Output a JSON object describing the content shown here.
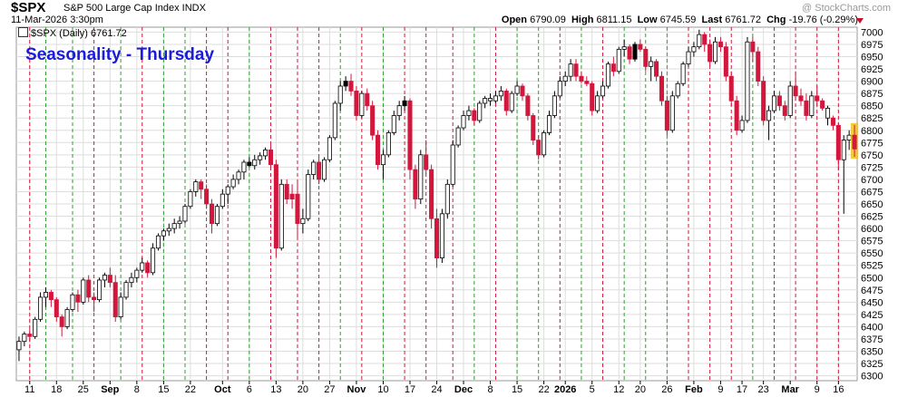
{
  "header": {
    "symbol": "$SPX",
    "name": "S&P 500 Large Cap Index INDX",
    "date": "11-Mar-2026 3:30pm",
    "watermark": "@ StockCharts.com",
    "open_label": "Open",
    "open": "6790.09",
    "high_label": "High",
    "high": "6811.15",
    "low_label": "Low",
    "low": "6745.59",
    "last_label": "Last",
    "last": "6761.72",
    "chg_label": "Chg",
    "chg": "-19.76 (-0.29%)"
  },
  "legend": {
    "text": "$SPX (Daily) 6761.72"
  },
  "overlay": {
    "text": "Seasonality - Thursday"
  },
  "colors": {
    "up": "#ffffff",
    "down": "#d2163c",
    "neutral": "#000000",
    "current": "#f0c419",
    "green_line": "#2e9e2e",
    "red_line": "#d2163c",
    "grid": "#dddddd"
  },
  "chart_data": {
    "type": "candlestick",
    "ylim": [
      6290,
      7010
    ],
    "yticks": [
      6300,
      6325,
      6350,
      6375,
      6400,
      6425,
      6450,
      6475,
      6500,
      6525,
      6550,
      6575,
      6600,
      6625,
      6650,
      6675,
      6700,
      6725,
      6750,
      6775,
      6800,
      6825,
      6850,
      6875,
      6900,
      6925,
      6950,
      6975,
      7000
    ],
    "xticks": [
      "11",
      "18",
      "25",
      "Sep",
      "8",
      "15",
      "22",
      "Oct",
      "6",
      "13",
      "20",
      "27",
      "Nov",
      "10",
      "17",
      "24",
      "Dec",
      "8",
      "15",
      "22",
      "2026",
      "5",
      "12",
      "20",
      "26",
      "Feb",
      "9",
      "17",
      "23",
      "Mar",
      "9",
      "16"
    ],
    "tick_positions": [
      2,
      7,
      12,
      17,
      22,
      27,
      32,
      38,
      43,
      48,
      53,
      58,
      63,
      68,
      73,
      78,
      83,
      88,
      93,
      98,
      102,
      107,
      112,
      116,
      121,
      126,
      131,
      135,
      139,
      144,
      149,
      153
    ],
    "candles": [
      [
        6353,
        6380,
        6330,
        6370,
        "u"
      ],
      [
        6370,
        6390,
        6360,
        6385,
        "u"
      ],
      [
        6385,
        6395,
        6370,
        6380,
        "d"
      ],
      [
        6380,
        6420,
        6375,
        6415,
        "u"
      ],
      [
        6415,
        6470,
        6410,
        6460,
        "u"
      ],
      [
        6460,
        6480,
        6440,
        6470,
        "u"
      ],
      [
        6470,
        6475,
        6440,
        6455,
        "d"
      ],
      [
        6455,
        6460,
        6410,
        6420,
        "d"
      ],
      [
        6420,
        6425,
        6380,
        6400,
        "d"
      ],
      [
        6400,
        6440,
        6395,
        6435,
        "u"
      ],
      [
        6435,
        6470,
        6430,
        6465,
        "u"
      ],
      [
        6465,
        6475,
        6430,
        6450,
        "d"
      ],
      [
        6450,
        6500,
        6445,
        6495,
        "u"
      ],
      [
        6495,
        6505,
        6450,
        6460,
        "d"
      ],
      [
        6460,
        6470,
        6430,
        6455,
        "d"
      ],
      [
        6455,
        6500,
        6450,
        6495,
        "u"
      ],
      [
        6495,
        6510,
        6480,
        6505,
        "u"
      ],
      [
        6505,
        6520,
        6480,
        6490,
        "d"
      ],
      [
        6490,
        6505,
        6410,
        6420,
        "d"
      ],
      [
        6420,
        6470,
        6415,
        6460,
        "u"
      ],
      [
        6460,
        6495,
        6455,
        6490,
        "u"
      ],
      [
        6490,
        6510,
        6480,
        6500,
        "u"
      ],
      [
        6500,
        6520,
        6490,
        6515,
        "u"
      ],
      [
        6515,
        6540,
        6510,
        6530,
        "u"
      ],
      [
        6530,
        6535,
        6500,
        6510,
        "d"
      ],
      [
        6510,
        6570,
        6505,
        6560,
        "u"
      ],
      [
        6560,
        6590,
        6555,
        6585,
        "u"
      ],
      [
        6585,
        6600,
        6575,
        6595,
        "u"
      ],
      [
        6595,
        6610,
        6585,
        6600,
        "u"
      ],
      [
        6600,
        6620,
        6590,
        6610,
        "u"
      ],
      [
        6610,
        6625,
        6600,
        6615,
        "u"
      ],
      [
        6615,
        6650,
        6610,
        6645,
        "u"
      ],
      [
        6645,
        6680,
        6640,
        6675,
        "u"
      ],
      [
        6675,
        6700,
        6665,
        6695,
        "u"
      ],
      [
        6695,
        6700,
        6660,
        6680,
        "d"
      ],
      [
        6680,
        6690,
        6640,
        6650,
        "d"
      ],
      [
        6650,
        6660,
        6590,
        6610,
        "d"
      ],
      [
        6610,
        6650,
        6605,
        6645,
        "u"
      ],
      [
        6645,
        6680,
        6640,
        6670,
        "u"
      ],
      [
        6670,
        6690,
        6650,
        6685,
        "u"
      ],
      [
        6685,
        6710,
        6680,
        6700,
        "u"
      ],
      [
        6700,
        6720,
        6690,
        6715,
        "u"
      ],
      [
        6715,
        6740,
        6700,
        6735,
        "u"
      ],
      [
        6735,
        6745,
        6725,
        6728,
        "n"
      ],
      [
        6728,
        6750,
        6720,
        6740,
        "u"
      ],
      [
        6740,
        6755,
        6730,
        6748,
        "u"
      ],
      [
        6748,
        6765,
        6740,
        6760,
        "u"
      ],
      [
        6760,
        6770,
        6720,
        6730,
        "d"
      ],
      [
        6730,
        6740,
        6540,
        6560,
        "d"
      ],
      [
        6560,
        6700,
        6555,
        6690,
        "u"
      ],
      [
        6690,
        6700,
        6650,
        6660,
        "d"
      ],
      [
        6660,
        6690,
        6640,
        6670,
        "d"
      ],
      [
        6670,
        6700,
        6580,
        6610,
        "d"
      ],
      [
        6610,
        6640,
        6590,
        6620,
        "u"
      ],
      [
        6620,
        6720,
        6615,
        6710,
        "u"
      ],
      [
        6710,
        6740,
        6700,
        6735,
        "u"
      ],
      [
        6735,
        6745,
        6690,
        6700,
        "d"
      ],
      [
        6700,
        6745,
        6695,
        6740,
        "u"
      ],
      [
        6740,
        6790,
        6735,
        6785,
        "u"
      ],
      [
        6785,
        6860,
        6780,
        6855,
        "u"
      ],
      [
        6855,
        6900,
        6840,
        6890,
        "u"
      ],
      [
        6890,
        6910,
        6880,
        6900,
        "n"
      ],
      [
        6900,
        6915,
        6870,
        6880,
        "d"
      ],
      [
        6880,
        6890,
        6820,
        6830,
        "d"
      ],
      [
        6830,
        6880,
        6825,
        6875,
        "u"
      ],
      [
        6875,
        6885,
        6840,
        6850,
        "d"
      ],
      [
        6850,
        6860,
        6780,
        6790,
        "d"
      ],
      [
        6790,
        6800,
        6720,
        6730,
        "d"
      ],
      [
        6730,
        6760,
        6700,
        6750,
        "u"
      ],
      [
        6750,
        6800,
        6745,
        6795,
        "u"
      ],
      [
        6795,
        6840,
        6790,
        6830,
        "u"
      ],
      [
        6830,
        6860,
        6820,
        6850,
        "u"
      ],
      [
        6850,
        6870,
        6840,
        6860,
        "n"
      ],
      [
        6860,
        6865,
        6700,
        6720,
        "d"
      ],
      [
        6720,
        6730,
        6640,
        6660,
        "d"
      ],
      [
        6660,
        6760,
        6650,
        6750,
        "u"
      ],
      [
        6750,
        6780,
        6710,
        6720,
        "d"
      ],
      [
        6720,
        6730,
        6600,
        6620,
        "d"
      ],
      [
        6620,
        6640,
        6520,
        6540,
        "d"
      ],
      [
        6540,
        6640,
        6530,
        6630,
        "u"
      ],
      [
        6630,
        6700,
        6620,
        6690,
        "u"
      ],
      [
        6690,
        6780,
        6685,
        6770,
        "u"
      ],
      [
        6770,
        6810,
        6765,
        6805,
        "u"
      ],
      [
        6805,
        6840,
        6800,
        6830,
        "u"
      ],
      [
        6830,
        6850,
        6820,
        6840,
        "u"
      ],
      [
        6840,
        6845,
        6810,
        6820,
        "d"
      ],
      [
        6820,
        6860,
        6815,
        6855,
        "u"
      ],
      [
        6855,
        6870,
        6845,
        6865,
        "u"
      ],
      [
        6865,
        6875,
        6850,
        6860,
        "u"
      ],
      [
        6860,
        6880,
        6855,
        6870,
        "u"
      ],
      [
        6870,
        6890,
        6860,
        6880,
        "u"
      ],
      [
        6880,
        6885,
        6830,
        6840,
        "d"
      ],
      [
        6840,
        6880,
        6835,
        6875,
        "u"
      ],
      [
        6875,
        6900,
        6870,
        6890,
        "u"
      ],
      [
        6890,
        6895,
        6860,
        6870,
        "d"
      ],
      [
        6870,
        6875,
        6820,
        6830,
        "d"
      ],
      [
        6830,
        6835,
        6770,
        6780,
        "d"
      ],
      [
        6780,
        6790,
        6740,
        6750,
        "d"
      ],
      [
        6750,
        6800,
        6745,
        6795,
        "u"
      ],
      [
        6795,
        6840,
        6790,
        6830,
        "u"
      ],
      [
        6830,
        6880,
        6825,
        6870,
        "u"
      ],
      [
        6870,
        6910,
        6865,
        6900,
        "u"
      ],
      [
        6900,
        6920,
        6890,
        6910,
        "u"
      ],
      [
        6910,
        6945,
        6900,
        6935,
        "u"
      ],
      [
        6935,
        6945,
        6900,
        6910,
        "d"
      ],
      [
        6910,
        6920,
        6895,
        6900,
        "d"
      ],
      [
        6900,
        6910,
        6890,
        6895,
        "d"
      ],
      [
        6895,
        6900,
        6830,
        6840,
        "d"
      ],
      [
        6840,
        6880,
        6835,
        6870,
        "u"
      ],
      [
        6870,
        6900,
        6865,
        6890,
        "u"
      ],
      [
        6890,
        6940,
        6885,
        6935,
        "u"
      ],
      [
        6935,
        6950,
        6910,
        6920,
        "d"
      ],
      [
        6920,
        6970,
        6915,
        6965,
        "u"
      ],
      [
        6965,
        6985,
        6950,
        6970,
        "u"
      ],
      [
        6970,
        6975,
        6935,
        6945,
        "d"
      ],
      [
        6945,
        6980,
        6940,
        6975,
        "n"
      ],
      [
        6975,
        6985,
        6960,
        6965,
        "d"
      ],
      [
        6965,
        6970,
        6920,
        6930,
        "d"
      ],
      [
        6930,
        6950,
        6900,
        6940,
        "u"
      ],
      [
        6940,
        6945,
        6900,
        6910,
        "d"
      ],
      [
        6910,
        6920,
        6850,
        6860,
        "d"
      ],
      [
        6860,
        6870,
        6790,
        6800,
        "d"
      ],
      [
        6800,
        6880,
        6795,
        6870,
        "u"
      ],
      [
        6870,
        6900,
        6865,
        6895,
        "u"
      ],
      [
        6895,
        6940,
        6890,
        6935,
        "u"
      ],
      [
        6935,
        6970,
        6930,
        6960,
        "u"
      ],
      [
        6960,
        6980,
        6950,
        6970,
        "u"
      ],
      [
        6970,
        7005,
        6965,
        6995,
        "u"
      ],
      [
        6995,
        7000,
        6960,
        6975,
        "d"
      ],
      [
        6975,
        6985,
        6930,
        6940,
        "d"
      ],
      [
        6940,
        6990,
        6935,
        6980,
        "u"
      ],
      [
        6980,
        6990,
        6960,
        6970,
        "d"
      ],
      [
        6970,
        6980,
        6900,
        6910,
        "d"
      ],
      [
        6910,
        6920,
        6850,
        6860,
        "d"
      ],
      [
        6860,
        6870,
        6790,
        6800,
        "d"
      ],
      [
        6800,
        6830,
        6795,
        6820,
        "u"
      ],
      [
        6820,
        6990,
        6815,
        6980,
        "u"
      ],
      [
        6980,
        6990,
        6940,
        6960,
        "d"
      ],
      [
        6960,
        6970,
        6890,
        6900,
        "d"
      ],
      [
        6900,
        6910,
        6810,
        6820,
        "d"
      ],
      [
        6820,
        6850,
        6780,
        6840,
        "u"
      ],
      [
        6840,
        6880,
        6835,
        6870,
        "u"
      ],
      [
        6870,
        6880,
        6840,
        6850,
        "d"
      ],
      [
        6850,
        6860,
        6820,
        6830,
        "d"
      ],
      [
        6830,
        6900,
        6825,
        6890,
        "u"
      ],
      [
        6890,
        6920,
        6860,
        6870,
        "d"
      ],
      [
        6870,
        6885,
        6850,
        6860,
        "d"
      ],
      [
        6860,
        6875,
        6820,
        6830,
        "d"
      ],
      [
        6830,
        6880,
        6825,
        6870,
        "u"
      ],
      [
        6870,
        6890,
        6850,
        6860,
        "d"
      ],
      [
        6860,
        6865,
        6840,
        6845,
        "d"
      ],
      [
        6845,
        6850,
        6810,
        6825,
        "u"
      ],
      [
        6825,
        6830,
        6800,
        6810,
        "d"
      ],
      [
        6810,
        6815,
        6720,
        6740,
        "d"
      ],
      [
        6740,
        6790,
        6630,
        6780,
        "u"
      ],
      [
        6780,
        6800,
        6760,
        6790,
        "u"
      ],
      [
        6790,
        6811,
        6746,
        6762,
        "c"
      ]
    ],
    "day_lines": [
      [
        2,
        "r"
      ],
      [
        5,
        "g"
      ],
      [
        10,
        "g"
      ],
      [
        14,
        "r"
      ],
      [
        19,
        "g"
      ],
      [
        23,
        "r"
      ],
      [
        27,
        "g"
      ],
      [
        31,
        "g"
      ],
      [
        35,
        "r"
      ],
      [
        39,
        "r"
      ],
      [
        43,
        "g"
      ],
      [
        47,
        "r"
      ],
      [
        52,
        "r"
      ],
      [
        56,
        "r"
      ],
      [
        60,
        "g"
      ],
      [
        64,
        "r"
      ],
      [
        68,
        "g"
      ],
      [
        72,
        "r"
      ],
      [
        76,
        "r"
      ],
      [
        81,
        "r"
      ],
      [
        85,
        "g"
      ],
      [
        89,
        "r"
      ],
      [
        93,
        "g"
      ],
      [
        97,
        "g"
      ],
      [
        101,
        "r"
      ],
      [
        105,
        "g"
      ],
      [
        109,
        "r"
      ],
      [
        113,
        "g"
      ],
      [
        117,
        "g"
      ],
      [
        121,
        "g"
      ],
      [
        125,
        "r"
      ],
      [
        129,
        "r"
      ],
      [
        133,
        "r"
      ],
      [
        137,
        "g"
      ],
      [
        141,
        "r"
      ],
      [
        145,
        "r"
      ],
      [
        149,
        "r"
      ],
      [
        153,
        "r"
      ]
    ]
  }
}
